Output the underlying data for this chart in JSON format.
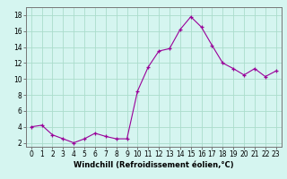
{
  "x": [
    0,
    1,
    2,
    3,
    4,
    5,
    6,
    7,
    8,
    9,
    10,
    11,
    12,
    13,
    14,
    15,
    16,
    17,
    18,
    19,
    20,
    21,
    22,
    23
  ],
  "y": [
    4.0,
    4.2,
    3.0,
    2.5,
    2.0,
    2.5,
    3.2,
    2.8,
    2.5,
    2.5,
    8.5,
    11.5,
    13.5,
    13.8,
    16.2,
    17.8,
    16.5,
    14.2,
    12.0,
    11.3,
    10.5,
    11.3,
    10.3,
    11.0
  ],
  "line_color": "#990099",
  "marker": "+",
  "marker_size": 3,
  "bg_color": "#d5f5f0",
  "grid_color": "#aaddcc",
  "xlabel": "Windchill (Refroidissement éolien,°C)",
  "xlabel_fontsize": 6.0,
  "ylabel_ticks": [
    2,
    4,
    6,
    8,
    10,
    12,
    14,
    16,
    18
  ],
  "xlim": [
    -0.5,
    23.5
  ],
  "ylim": [
    1.5,
    19.0
  ],
  "tick_fontsize": 5.5,
  "spine_color": "#777777"
}
